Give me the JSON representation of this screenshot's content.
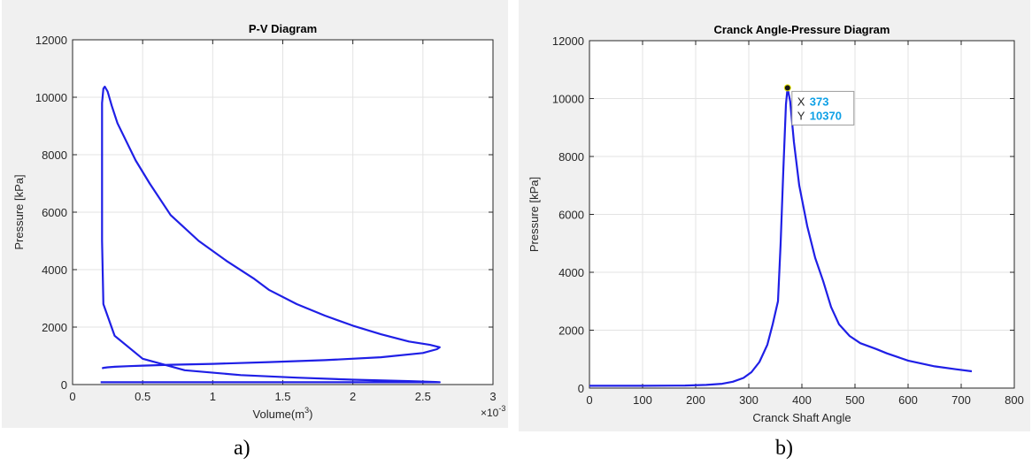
{
  "chart_data": [
    {
      "type": "line",
      "title": "P-V Diagram",
      "xlabel": "Volume(m",
      "xlabel_sup": "3",
      "xlabel_close": ")",
      "ylabel": "Pressure [kPa]",
      "x_exponent_label": "×10",
      "x_exponent_power": "-3",
      "xlim": [
        0,
        3
      ],
      "ylim": [
        0,
        12000
      ],
      "x_ticks": [
        "0",
        "0.5",
        "1",
        "1.5",
        "2",
        "2.5",
        "3"
      ],
      "x_tick_values": [
        0,
        0.5,
        1,
        1.5,
        2,
        2.5,
        3
      ],
      "y_ticks": [
        "0",
        "2000",
        "4000",
        "6000",
        "8000",
        "10000",
        "12000"
      ],
      "y_tick_values": [
        0,
        2000,
        4000,
        6000,
        8000,
        10000,
        12000
      ],
      "grid": true,
      "series": [
        {
          "color": "#1f1fe6",
          "x": [
            0.2,
            0.4,
            0.8,
            1.2,
            1.6,
            2.0,
            2.4,
            2.6,
            2.62,
            2.59,
            2.4,
            2.0,
            1.6,
            1.2,
            0.8,
            0.5,
            0.3,
            0.22,
            0.21,
            0.21,
            0.21,
            0.22,
            0.23,
            0.25,
            0.28,
            0.32,
            0.38,
            0.45,
            0.55,
            0.7,
            0.9,
            1.1,
            1.29,
            1.4,
            1.6,
            1.8,
            2.0,
            2.2,
            2.4,
            2.55,
            2.62,
            2.6,
            2.5,
            2.2,
            1.8,
            1.4,
            1.0,
            0.7,
            0.5,
            0.4,
            0.3,
            0.25,
            0.22,
            0.21
          ],
          "y": [
            80,
            80,
            80,
            80,
            80,
            80,
            80,
            80,
            80,
            90,
            120,
            170,
            240,
            330,
            500,
            900,
            1700,
            2800,
            5000,
            8000,
            9800,
            10300,
            10370,
            10200,
            9700,
            9100,
            8500,
            7800,
            7000,
            5900,
            5000,
            4300,
            3700,
            3300,
            2800,
            2400,
            2050,
            1750,
            1500,
            1380,
            1300,
            1230,
            1100,
            950,
            850,
            780,
            720,
            690,
            660,
            640,
            620,
            600,
            580,
            560
          ]
        }
      ]
    },
    {
      "type": "line",
      "title": "Cranck Angle-Pressure Diagram",
      "xlabel": "Cranck Shaft Angle",
      "ylabel": "Pressure [kPa]",
      "xlim": [
        0,
        800
      ],
      "ylim": [
        0,
        12000
      ],
      "x_ticks": [
        "0",
        "100",
        "200",
        "300",
        "400",
        "500",
        "600",
        "700",
        "800"
      ],
      "x_tick_values": [
        0,
        100,
        200,
        300,
        400,
        500,
        600,
        700,
        800
      ],
      "y_ticks": [
        "0",
        "2000",
        "4000",
        "6000",
        "8000",
        "10000",
        "12000"
      ],
      "y_tick_values": [
        0,
        2000,
        4000,
        6000,
        8000,
        10000,
        12000
      ],
      "grid": true,
      "series": [
        {
          "color": "#1f1fe6",
          "x": [
            0,
            100,
            180,
            220,
            250,
            270,
            290,
            305,
            320,
            335,
            345,
            355,
            360,
            365,
            370,
            373,
            378,
            385,
            395,
            410,
            425,
            440,
            455,
            470,
            490,
            510,
            540,
            560,
            600,
            650,
            690,
            720
          ],
          "y": [
            80,
            80,
            90,
            110,
            150,
            220,
            350,
            550,
            900,
            1500,
            2200,
            3000,
            5000,
            7500,
            9800,
            10370,
            9900,
            8500,
            7000,
            5600,
            4500,
            3700,
            2800,
            2200,
            1800,
            1550,
            1350,
            1200,
            950,
            750,
            650,
            580
          ]
        }
      ],
      "datatip": {
        "x_label": "X",
        "x_value": "373",
        "y_label": "Y",
        "y_value": "10370",
        "point": [
          373,
          10370
        ]
      }
    }
  ],
  "captions": {
    "a": "a)",
    "b": "b)"
  }
}
